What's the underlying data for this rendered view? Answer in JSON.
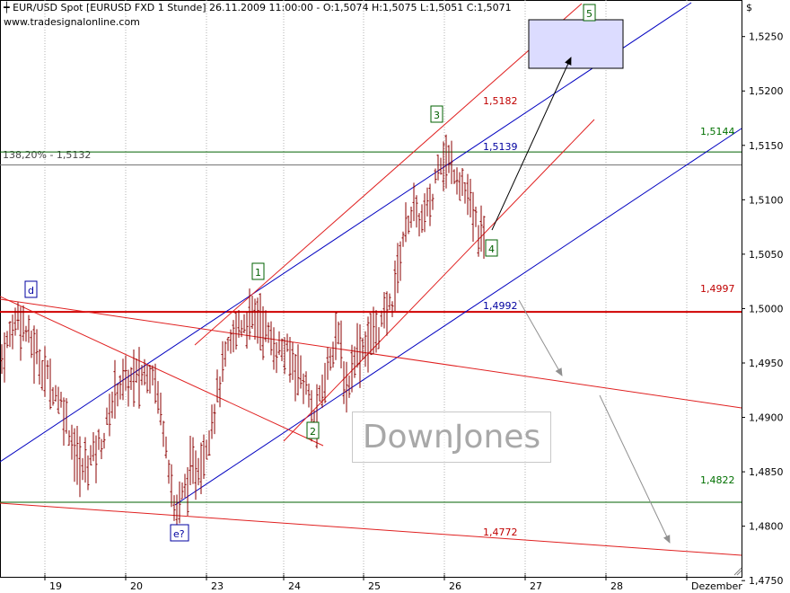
{
  "header": {
    "title": "EUR/USD Spot [EURUSD FXD  1 Stunde] 26.11.2009 11:00:00 - O:1,5074 H:1,5075 L:1,5051 C:1,5071",
    "subtitle": "www.tradesignalonline.com",
    "currency_symbol": "$"
  },
  "watermark": "DownJones",
  "retracement_label": "138,20% - 1,5132",
  "chart_data": {
    "type": "ohlc",
    "instrument": "EUR/USD Spot",
    "interval": "1 Stunde",
    "y_axis": {
      "ticks": [
        "1,4750",
        "1,4800",
        "1,4850",
        "1,4900",
        "1,4950",
        "1,5000",
        "1,5050",
        "1,5100",
        "1,5150",
        "1,5200",
        "1,5250"
      ],
      "ylim": [
        1.4747,
        1.5277
      ]
    },
    "x_axis": {
      "ticks": [
        "19",
        "20",
        "23",
        "24",
        "25",
        "26",
        "27",
        "28",
        "Dezember"
      ]
    },
    "level_labels": [
      {
        "text": "1,5144",
        "value": 1.5144,
        "color": "#007000"
      },
      {
        "text": "1,4997",
        "value": 1.4997,
        "color": "#c00000"
      },
      {
        "text": "1,4822",
        "value": 1.4822,
        "color": "#007000"
      },
      {
        "text": "1,4772",
        "value": 1.4772,
        "color": "#c00000"
      },
      {
        "text": "1,5182",
        "value": 1.5182,
        "color": "#c00000"
      },
      {
        "text": "1,5139",
        "value": 1.5139,
        "color": "#0000a0"
      },
      {
        "text": "1,4992",
        "value": 1.4992,
        "color": "#0000a0"
      }
    ],
    "wave_labels": [
      {
        "text": "d",
        "color": "#0000a0"
      },
      {
        "text": "e?",
        "color": "#0000a0"
      },
      {
        "text": "1",
        "color": "#006000"
      },
      {
        "text": "2",
        "color": "#006000"
      },
      {
        "text": "3",
        "color": "#006000"
      },
      {
        "text": "4",
        "color": "#006000"
      },
      {
        "text": "5",
        "color": "#006000"
      }
    ],
    "bar_pivots": [
      [
        0,
        1.495
      ],
      [
        20,
        1.4995
      ],
      [
        45,
        1.495
      ],
      [
        70,
        1.491
      ],
      [
        90,
        1.485
      ],
      [
        115,
        1.488
      ],
      [
        130,
        1.493
      ],
      [
        150,
        1.4935
      ],
      [
        170,
        1.4945
      ],
      [
        185,
        1.488
      ],
      [
        195,
        1.4808
      ],
      [
        210,
        1.4845
      ],
      [
        225,
        1.486
      ],
      [
        238,
        1.4905
      ],
      [
        250,
        1.495
      ],
      [
        265,
        1.4985
      ],
      [
        288,
        1.4993
      ],
      [
        305,
        1.4965
      ],
      [
        318,
        1.496
      ],
      [
        332,
        1.4945
      ],
      [
        342,
        1.4925
      ],
      [
        350,
        1.4893
      ],
      [
        358,
        1.492
      ],
      [
        366,
        1.495
      ],
      [
        374,
        1.498
      ],
      [
        380,
        1.496
      ],
      [
        386,
        1.492
      ],
      [
        395,
        1.496
      ],
      [
        405,
        1.4965
      ],
      [
        415,
        1.4975
      ],
      [
        425,
        1.4985
      ],
      [
        438,
        1.501
      ],
      [
        450,
        1.507
      ],
      [
        458,
        1.509
      ],
      [
        470,
        1.508
      ],
      [
        482,
        1.51
      ],
      [
        488,
        1.514
      ],
      [
        496,
        1.5135
      ],
      [
        505,
        1.513
      ],
      [
        515,
        1.5115
      ],
      [
        523,
        1.5095
      ],
      [
        531,
        1.5075
      ],
      [
        539,
        1.506
      ]
    ]
  },
  "colors": {
    "price_bars": "#8b0000",
    "channel_blue": "#0000c0",
    "channel_red": "#e02020",
    "level_green": "#006000",
    "level_red": "#d00000",
    "target_box_fill": "#dcdcff"
  }
}
